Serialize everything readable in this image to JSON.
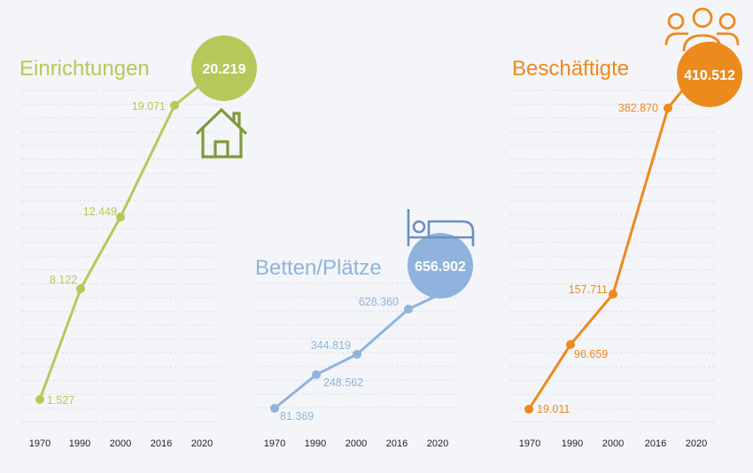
{
  "chart_data": [
    {
      "type": "line",
      "title": "Einrichtungen",
      "color": "#b5c95a",
      "categories": [
        "1970",
        "1990",
        "2000",
        "2016",
        "2020"
      ],
      "x": [
        1970,
        1990,
        2000,
        2016,
        2020
      ],
      "series": [
        {
          "values": [
            1527,
            8122,
            12449,
            19071,
            20219
          ]
        }
      ],
      "data_labels": [
        "1.527",
        "8.122",
        "12.449",
        "19.071"
      ],
      "highlight": {
        "label": "20.219",
        "value": 20219,
        "icon": "house-icon"
      },
      "ylim": [
        0,
        24000
      ],
      "grid": true
    },
    {
      "type": "line",
      "title": "Betten/Plätze",
      "color": "#8fb3dc",
      "categories": [
        "1970",
        "1990",
        "2000",
        "2016",
        "2020"
      ],
      "x": [
        1970,
        1990,
        2000,
        2016,
        2020
      ],
      "series": [
        {
          "values": [
            81369,
            248562,
            344819,
            628360,
            656902
          ]
        }
      ],
      "data_labels": [
        "81.369",
        "248.562",
        "344.819",
        "628.360"
      ],
      "highlight": {
        "label": "656.902",
        "value": 656902,
        "icon": "bed-icon"
      },
      "ylim": [
        0,
        700000
      ],
      "grid": true
    },
    {
      "type": "line",
      "title": "Beschäftigte",
      "color": "#ec8a1e",
      "categories": [
        "1970",
        "1990",
        "2000",
        "2016",
        "2020"
      ],
      "x": [
        1970,
        1990,
        2000,
        2016,
        2020
      ],
      "series": [
        {
          "values": [
            19011,
            96659,
            157711,
            382870,
            410512
          ]
        }
      ],
      "data_labels": [
        "19.011",
        "96.659",
        "157.711",
        "382.870"
      ],
      "highlight": {
        "label": "410.512",
        "value": 410512,
        "icon": "people-group-icon"
      },
      "ylim": [
        0,
        460000
      ],
      "grid": true
    }
  ]
}
